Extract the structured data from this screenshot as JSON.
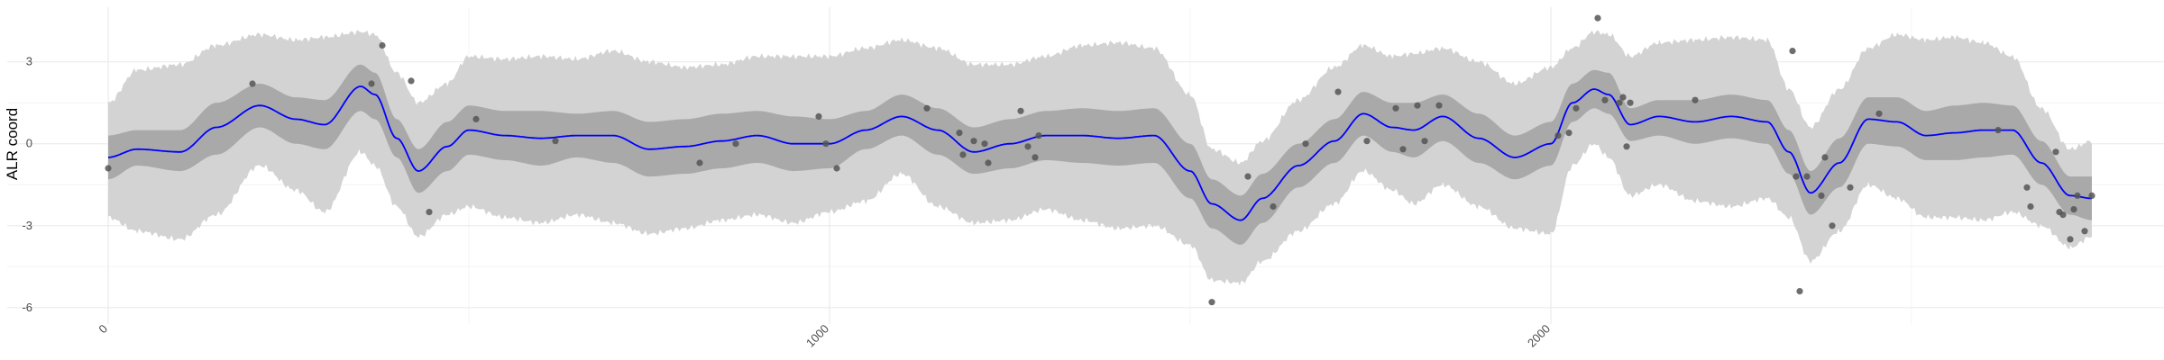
{
  "chart_data": {
    "type": "line",
    "ylabel": "ALR coord",
    "xlabel": "",
    "title": "",
    "xlim": [
      -140,
      2850
    ],
    "ylim": [
      -6.6,
      5.0
    ],
    "grid": true,
    "legend": "none",
    "x_ticks": [
      0,
      1000,
      2000
    ],
    "x_tick_labels": [
      "0",
      "1000",
      "2000"
    ],
    "y_ticks": [
      -6,
      -3,
      0,
      3
    ],
    "y_tick_labels": [
      "-6",
      "-3",
      "0",
      "3"
    ],
    "colors": {
      "mean_line": "#0000ff",
      "inner_band": "#a9a9a9",
      "outer_band": "#d3d3d3",
      "points": "#555555",
      "grid_major": "#ebebeb",
      "grid_minor": "#f4f4f4"
    },
    "mean_curve": {
      "x": [
        0,
        40,
        100,
        150,
        210,
        260,
        300,
        350,
        370,
        400,
        430,
        470,
        500,
        550,
        600,
        650,
        700,
        750,
        800,
        850,
        900,
        950,
        1000,
        1050,
        1100,
        1150,
        1200,
        1250,
        1300,
        1350,
        1400,
        1450,
        1500,
        1530,
        1570,
        1600,
        1650,
        1700,
        1740,
        1780,
        1810,
        1850,
        1900,
        1950,
        2000,
        2030,
        2060,
        2080,
        2110,
        2150,
        2200,
        2250,
        2300,
        2330,
        2360,
        2400,
        2440,
        2480,
        2520,
        2560,
        2600,
        2640,
        2680,
        2720,
        2750
      ],
      "y": [
        -0.5,
        -0.2,
        -0.3,
        0.6,
        1.4,
        0.9,
        0.7,
        2.1,
        1.8,
        0.2,
        -1.0,
        -0.1,
        0.5,
        0.3,
        0.2,
        0.3,
        0.3,
        -0.2,
        -0.1,
        0.1,
        0.3,
        0.0,
        0.0,
        0.5,
        1.0,
        0.5,
        -0.3,
        0.0,
        0.3,
        0.3,
        0.2,
        0.3,
        -1.0,
        -2.2,
        -2.8,
        -2.0,
        -0.8,
        0.1,
        1.1,
        0.6,
        0.5,
        1.0,
        0.2,
        -0.5,
        0.0,
        1.5,
        2.0,
        1.8,
        0.7,
        1.0,
        0.8,
        1.0,
        0.8,
        -0.3,
        -1.8,
        -0.7,
        0.9,
        0.8,
        0.3,
        0.4,
        0.5,
        0.5,
        -0.7,
        -1.9,
        -2.0
      ]
    },
    "inner_band": {
      "x": [
        0,
        40,
        100,
        150,
        210,
        260,
        300,
        350,
        370,
        400,
        430,
        470,
        500,
        550,
        600,
        650,
        700,
        750,
        800,
        850,
        900,
        950,
        1000,
        1050,
        1100,
        1150,
        1200,
        1250,
        1300,
        1350,
        1400,
        1450,
        1500,
        1530,
        1570,
        1600,
        1650,
        1700,
        1740,
        1780,
        1810,
        1850,
        1900,
        1950,
        2000,
        2030,
        2060,
        2080,
        2110,
        2150,
        2200,
        2250,
        2300,
        2330,
        2360,
        2400,
        2440,
        2480,
        2520,
        2560,
        2600,
        2640,
        2680,
        2720,
        2750
      ],
      "lower": [
        -1.3,
        -0.8,
        -1.0,
        -0.4,
        0.6,
        0.0,
        -0.2,
        1.2,
        0.9,
        -0.5,
        -1.8,
        -1.0,
        -0.4,
        -0.6,
        -0.8,
        -0.5,
        -0.7,
        -1.2,
        -1.1,
        -0.9,
        -0.7,
        -1.0,
        -0.9,
        -0.2,
        0.3,
        -0.4,
        -1.1,
        -0.9,
        -0.6,
        -0.7,
        -0.8,
        -0.7,
        -2.0,
        -3.1,
        -3.7,
        -2.9,
        -1.6,
        -0.7,
        0.3,
        -0.3,
        -0.5,
        0.1,
        -0.7,
        -1.3,
        -0.8,
        0.8,
        1.3,
        1.1,
        0.1,
        0.3,
        0.0,
        0.2,
        0.0,
        -1.1,
        -2.6,
        -1.6,
        0.0,
        -0.1,
        -0.6,
        -0.6,
        -0.5,
        -0.4,
        -1.5,
        -2.6,
        -2.8
      ],
      "upper": [
        0.3,
        0.5,
        0.5,
        1.5,
        2.2,
        1.7,
        1.6,
        2.9,
        2.6,
        0.9,
        -0.2,
        0.8,
        1.4,
        1.2,
        1.2,
        1.1,
        1.2,
        0.8,
        0.9,
        1.1,
        1.2,
        1.0,
        0.9,
        1.2,
        1.8,
        1.3,
        0.6,
        0.9,
        1.2,
        1.3,
        1.2,
        1.3,
        0.0,
        -1.3,
        -1.9,
        -1.1,
        0.0,
        0.9,
        1.9,
        1.5,
        1.5,
        1.8,
        1.1,
        0.3,
        0.8,
        2.2,
        2.7,
        2.6,
        1.3,
        1.6,
        1.6,
        1.8,
        1.6,
        0.5,
        -1.0,
        0.2,
        1.7,
        1.7,
        1.2,
        1.4,
        1.5,
        1.4,
        0.1,
        -1.2,
        -1.2
      ]
    },
    "outer_band": {
      "x": [
        0,
        40,
        100,
        150,
        210,
        260,
        300,
        350,
        370,
        400,
        430,
        470,
        500,
        550,
        600,
        650,
        700,
        750,
        800,
        850,
        900,
        950,
        1000,
        1050,
        1100,
        1150,
        1200,
        1250,
        1300,
        1350,
        1400,
        1450,
        1500,
        1530,
        1570,
        1600,
        1650,
        1700,
        1740,
        1780,
        1810,
        1850,
        1900,
        1950,
        2000,
        2030,
        2060,
        2080,
        2110,
        2150,
        2200,
        2250,
        2300,
        2330,
        2360,
        2400,
        2440,
        2480,
        2520,
        2560,
        2600,
        2640,
        2680,
        2720,
        2750
      ],
      "lower": [
        -2.7,
        -3.2,
        -3.5,
        -2.6,
        -0.8,
        -1.7,
        -2.5,
        -0.3,
        -0.8,
        -2.3,
        -3.4,
        -2.6,
        -2.3,
        -2.7,
        -2.9,
        -2.6,
        -2.9,
        -3.3,
        -3.1,
        -2.8,
        -2.6,
        -2.9,
        -2.5,
        -2.1,
        -1.1,
        -2.3,
        -2.9,
        -2.8,
        -2.4,
        -2.8,
        -3.1,
        -3.0,
        -3.7,
        -5.0,
        -5.1,
        -4.3,
        -3.2,
        -2.2,
        -1.0,
        -1.7,
        -2.2,
        -1.5,
        -2.3,
        -3.1,
        -3.3,
        -0.8,
        0.0,
        -0.5,
        -1.9,
        -1.5,
        -2.1,
        -2.3,
        -2.0,
        -2.7,
        -4.3,
        -3.2,
        -1.5,
        -2.0,
        -2.7,
        -2.7,
        -2.8,
        -2.5,
        -3.0,
        -3.8,
        -3.4
      ],
      "upper": [
        1.5,
        2.7,
        2.9,
        3.6,
        4.0,
        3.8,
        3.9,
        4.1,
        4.0,
        2.6,
        1.5,
        2.2,
        3.2,
        3.1,
        3.2,
        3.1,
        3.4,
        3.0,
        2.8,
        2.9,
        3.2,
        3.2,
        3.2,
        3.5,
        3.8,
        3.5,
        2.9,
        2.9,
        3.2,
        3.6,
        3.7,
        3.5,
        1.8,
        -0.2,
        -0.7,
        0.1,
        1.6,
        2.8,
        3.6,
        3.2,
        3.3,
        3.5,
        3.0,
        2.2,
        2.8,
        3.5,
        4.1,
        4.0,
        3.2,
        3.7,
        3.8,
        3.9,
        3.8,
        2.0,
        0.6,
        2.0,
        3.5,
        4.0,
        3.8,
        3.9,
        3.7,
        3.2,
        1.3,
        -0.2,
        0.1
      ]
    },
    "points": {
      "x": [
        0,
        200,
        365,
        380,
        420,
        445,
        510,
        620,
        820,
        870,
        985,
        995,
        1010,
        1135,
        1180,
        1185,
        1200,
        1215,
        1220,
        1265,
        1275,
        1285,
        1290,
        1530,
        1580,
        1615,
        1660,
        1705,
        1745,
        1785,
        1795,
        1815,
        1825,
        1845,
        2010,
        2025,
        2035,
        2065,
        2075,
        2095,
        2100,
        2105,
        2110,
        2200,
        2335,
        2340,
        2345,
        2355,
        2375,
        2380,
        2390,
        2415,
        2455,
        2620,
        2660,
        2665,
        2700,
        2705,
        2710,
        2720,
        2725,
        2730,
        2740,
        2750
      ],
      "y": [
        -0.9,
        2.2,
        2.2,
        3.6,
        2.3,
        -2.5,
        0.9,
        0.1,
        -0.7,
        0.0,
        1.0,
        0.0,
        -0.9,
        1.3,
        0.4,
        -0.4,
        0.1,
        0.0,
        -0.7,
        1.2,
        -0.1,
        -0.5,
        0.3,
        -5.8,
        -1.2,
        -2.3,
        0.0,
        1.9,
        0.1,
        1.3,
        -0.2,
        1.4,
        0.1,
        1.4,
        0.3,
        0.4,
        1.3,
        4.6,
        1.6,
        1.5,
        1.7,
        -0.1,
        1.5,
        1.6,
        3.4,
        -1.2,
        -5.4,
        -1.2,
        -1.9,
        -0.5,
        -3.0,
        -1.6,
        1.1,
        0.5,
        -1.6,
        -2.3,
        -0.3,
        -2.5,
        -2.6,
        -3.5,
        -2.4,
        -1.9,
        -3.2,
        -1.9
      ]
    }
  }
}
